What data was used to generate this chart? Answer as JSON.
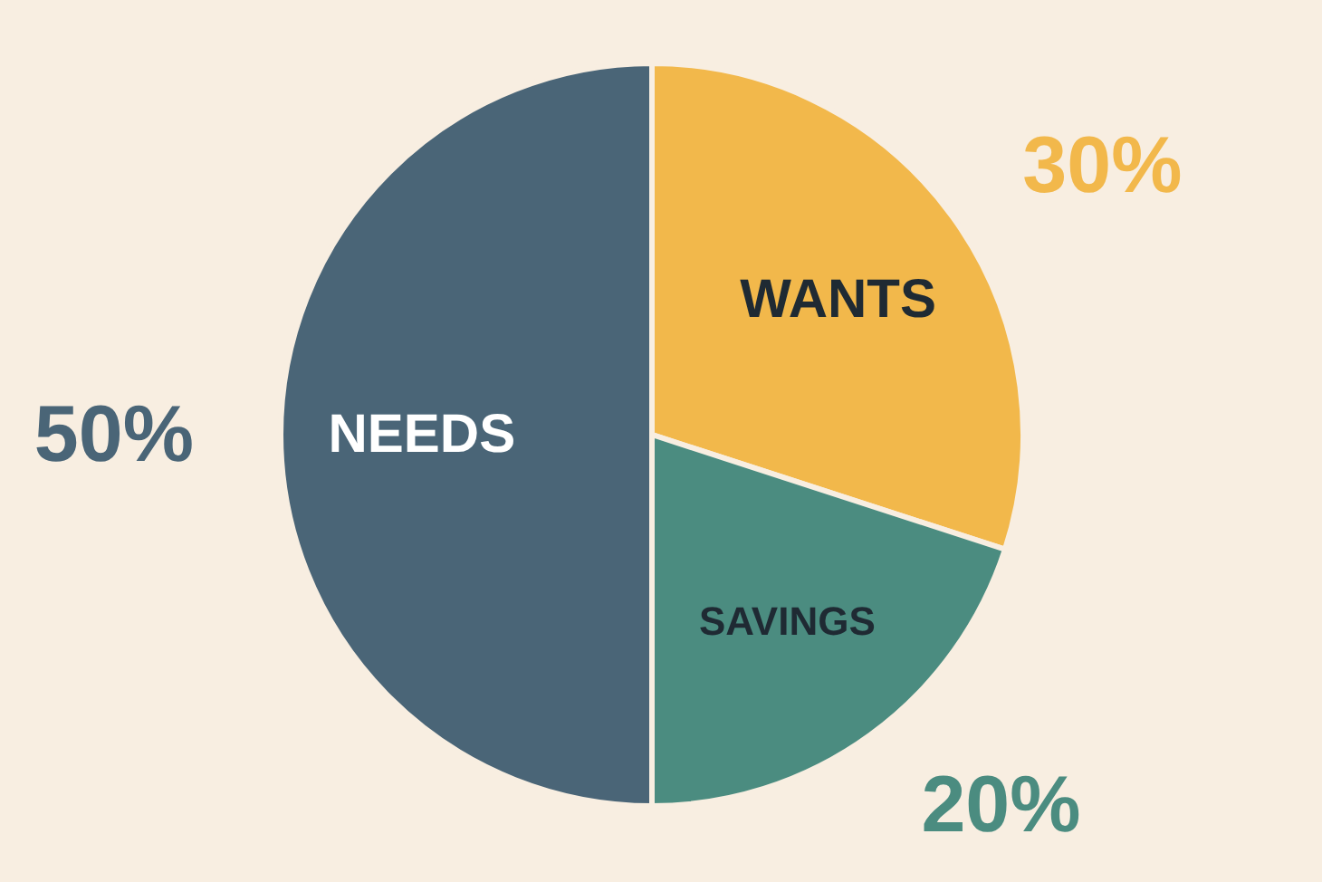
{
  "chart_data": {
    "type": "pie",
    "categories": [
      "WANTS",
      "SAVINGS",
      "NEEDS"
    ],
    "values": [
      30,
      20,
      50
    ],
    "colors": [
      "#f2b84b",
      "#4b8c80",
      "#4a6577"
    ],
    "value_labels": [
      "30%",
      "20%",
      "50%"
    ]
  }
}
